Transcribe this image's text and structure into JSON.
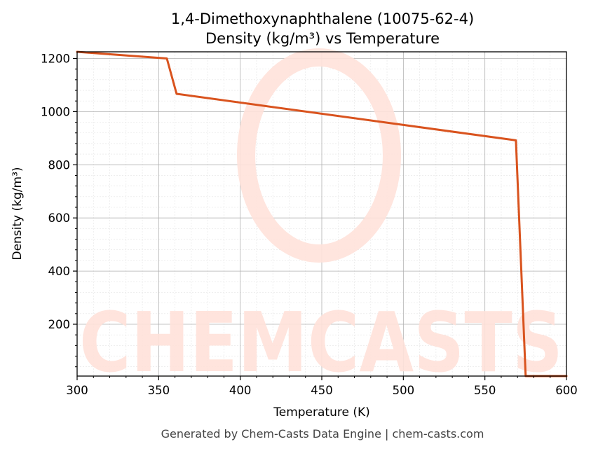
{
  "chart_data": {
    "type": "line",
    "title": "1,4-Dimethoxynaphthalene (10075-62-4)",
    "subtitle": "Density (kg/m³) vs Temperature",
    "xlabel": "Temperature (K)",
    "ylabel": "Density (kg/m³)",
    "xlim": [
      300,
      600
    ],
    "ylim": [
      5,
      1225
    ],
    "xticks": [
      300,
      350,
      400,
      450,
      500,
      550,
      600
    ],
    "yticks": [
      200,
      400,
      600,
      800,
      1000,
      1200
    ],
    "grid": true,
    "series": [
      {
        "x": [
          300,
          355,
          361,
          569,
          575,
          600
        ],
        "y": [
          1225,
          1200,
          1067,
          892,
          5,
          5
        ],
        "color": "#d9531e"
      }
    ],
    "watermark": "CHEMCASTS",
    "footer": "Generated by Chem-Casts Data Engine | chem-casts.com"
  }
}
